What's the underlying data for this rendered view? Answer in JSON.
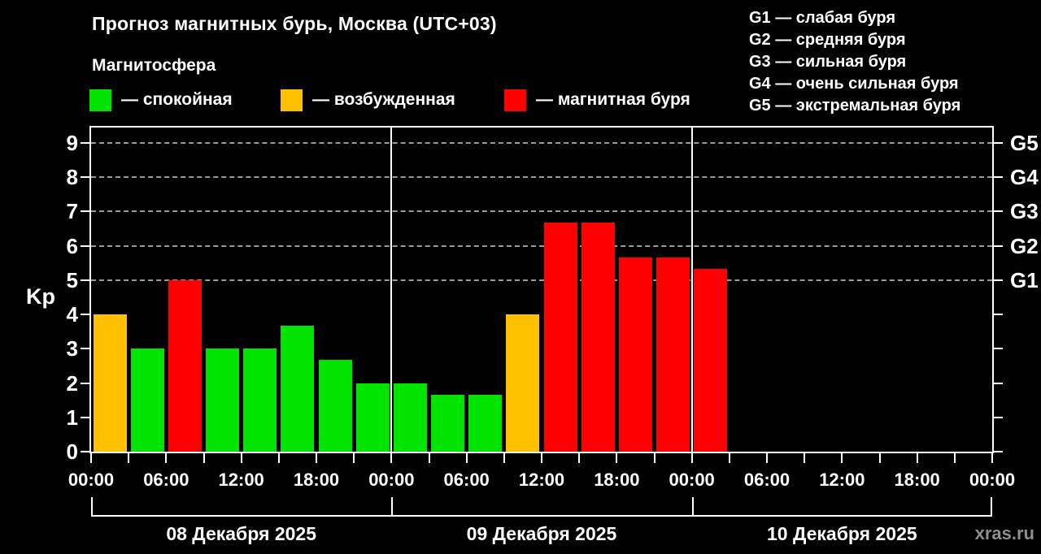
{
  "title": "Прогноз магнитных бурь, Москва (UTC+03)",
  "subtitle": "Магнитосфера",
  "legend": {
    "items": [
      {
        "state": "quiet",
        "label": "— спокойная",
        "color": "#00e400"
      },
      {
        "state": "excited",
        "label": "— возбужденная",
        "color": "#ffc000"
      },
      {
        "state": "storm",
        "label": "— магнитная буря",
        "color": "#ff0000"
      }
    ]
  },
  "storm_scale": [
    "G1 — слабая буря",
    "G2 — средняя буря",
    "G3 — сильная буря",
    "G4 — очень сильная буря",
    "G5 — экстремальная буря"
  ],
  "watermark": "xras.ru",
  "chart_data": {
    "type": "bar",
    "title": "Прогноз магнитных бурь, Москва (UTC+03)",
    "xlabel": "",
    "ylabel": "Kp",
    "ylim": [
      0,
      9.45
    ],
    "yticks": [
      0,
      1,
      2,
      3,
      4,
      5,
      6,
      7,
      8,
      9
    ],
    "gridline_values": [
      5,
      6,
      7,
      8,
      9
    ],
    "grid": "dashed-horizontal",
    "legend_position": "top",
    "right_axis": [
      {
        "value": 5,
        "label": "G1"
      },
      {
        "value": 6,
        "label": "G2"
      },
      {
        "value": 7,
        "label": "G3"
      },
      {
        "value": 8,
        "label": "G4"
      },
      {
        "value": 9,
        "label": "G5"
      }
    ],
    "hours_total": 72,
    "bar_slot_hours": 3,
    "xtick_step_hours": 3,
    "xlabel_step_hours": 6,
    "xtick_labels": [
      "00:00",
      "06:00",
      "12:00",
      "18:00",
      "00:00",
      "06:00",
      "12:00",
      "18:00",
      "00:00",
      "06:00",
      "12:00",
      "18:00",
      "00:00"
    ],
    "day_boundaries_hours": [
      0,
      24,
      48,
      72
    ],
    "days": [
      {
        "label": "08 Декабря 2025"
      },
      {
        "label": "09 Декабря 2025"
      },
      {
        "label": "10 Декабря 2025"
      }
    ],
    "state_colors": {
      "quiet": "#00e400",
      "excited": "#ffc000",
      "storm": "#ff0000"
    },
    "bars": [
      {
        "start_hour": 0,
        "value": 4,
        "state": "excited"
      },
      {
        "start_hour": 3,
        "value": 3,
        "state": "quiet"
      },
      {
        "start_hour": 6,
        "value": 5,
        "state": "storm"
      },
      {
        "start_hour": 9,
        "value": 3,
        "state": "quiet"
      },
      {
        "start_hour": 12,
        "value": 3,
        "state": "quiet"
      },
      {
        "start_hour": 15,
        "value": 3.67,
        "state": "quiet"
      },
      {
        "start_hour": 18,
        "value": 2.67,
        "state": "quiet"
      },
      {
        "start_hour": 21,
        "value": 2,
        "state": "quiet"
      },
      {
        "start_hour": 24,
        "value": 2,
        "state": "quiet"
      },
      {
        "start_hour": 27,
        "value": 1.67,
        "state": "quiet"
      },
      {
        "start_hour": 30,
        "value": 1.67,
        "state": "quiet"
      },
      {
        "start_hour": 33,
        "value": 4,
        "state": "excited"
      },
      {
        "start_hour": 36,
        "value": 6.67,
        "state": "storm"
      },
      {
        "start_hour": 39,
        "value": 6.67,
        "state": "storm"
      },
      {
        "start_hour": 42,
        "value": 5.67,
        "state": "storm"
      },
      {
        "start_hour": 45,
        "value": 5.67,
        "state": "storm"
      },
      {
        "start_hour": 48,
        "value": 5.33,
        "state": "storm"
      }
    ]
  }
}
